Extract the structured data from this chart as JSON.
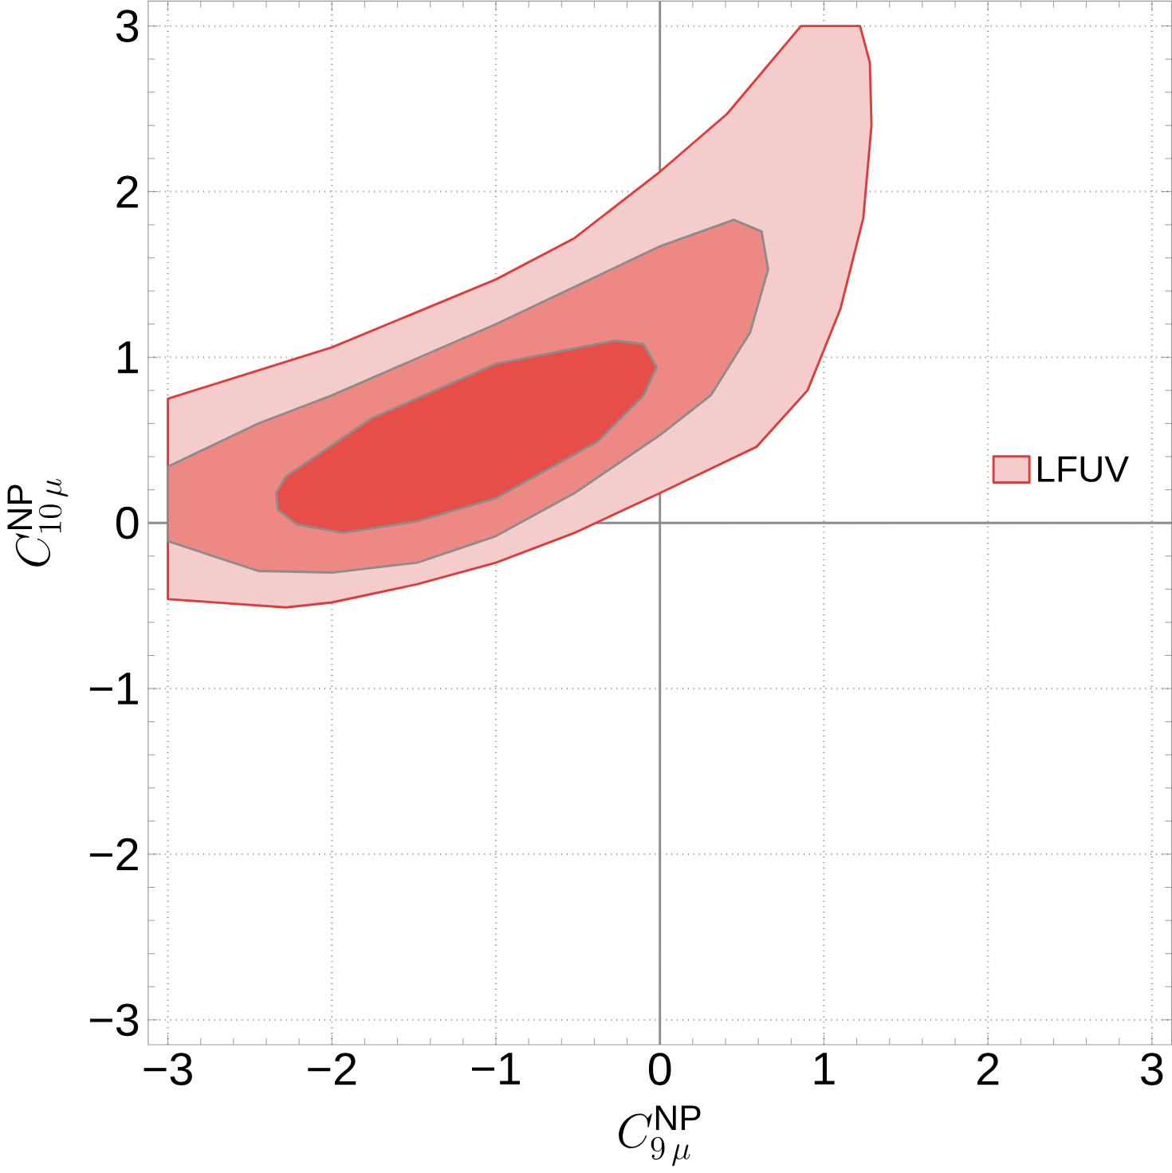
{
  "chart_data": {
    "type": "area",
    "xlabel": "C^{\\mathrm{NP}}_{9\\,\\mu}",
    "ylabel": "C^{\\mathrm{NP}}_{10\\,\\mu}",
    "xlim": [
      -3.12,
      3.12
    ],
    "ylim": [
      -3.15,
      3.15
    ],
    "xticks": [
      {
        "value": -3,
        "label": "−3"
      },
      {
        "value": -2,
        "label": "−2"
      },
      {
        "value": -1,
        "label": "−1"
      },
      0,
      1,
      2,
      3
    ],
    "yticks": [
      {
        "value": -3,
        "label": "−3"
      },
      {
        "value": -2,
        "label": "−2"
      },
      {
        "value": -1,
        "label": "−1"
      },
      0,
      1,
      2,
      3
    ],
    "grid": true,
    "legend": "right",
    "line_style": "solid",
    "series": [
      {
        "name": "LFUV",
        "color": "#f5cccc",
        "x": [
          -3,
          -2,
          -1,
          -0.52,
          0,
          0.41,
          0.86,
          1.22,
          1.28,
          1.29,
          1.24,
          1.1,
          0.9,
          0.59,
          0,
          -0.52,
          -1,
          -1.48,
          -2,
          -2.28,
          -3
        ],
        "values": [
          0.75,
          1.06,
          1.47,
          1.72,
          2.12,
          2.47,
          3.0,
          3.0,
          2.78,
          2.4,
          1.84,
          1.29,
          0.8,
          0.46,
          0.18,
          -0.06,
          -0.24,
          -0.37,
          -0.48,
          -0.51,
          -0.46
        ]
      },
      {
        "color": "#ee8883",
        "x": [
          -3,
          -2.45,
          -2,
          -1,
          0,
          0.45,
          0.62,
          0.66,
          0.55,
          0.31,
          0,
          -0.52,
          -1,
          -1.48,
          -2,
          -2.45,
          -3
        ],
        "values": [
          0.34,
          0.6,
          0.77,
          1.2,
          1.67,
          1.83,
          1.76,
          1.53,
          1.15,
          0.77,
          0.53,
          0.18,
          -0.08,
          -0.24,
          -0.3,
          -0.29,
          -0.11
        ]
      },
      {
        "color": "#e84e48",
        "x": [
          -2.34,
          -2.28,
          -1.76,
          -1,
          -0.28,
          -0.1,
          -0.02,
          -0.1,
          -0.38,
          -1,
          -1.48,
          -1.93,
          -2.21,
          -2.33
        ],
        "values": [
          0.18,
          0.28,
          0.63,
          0.96,
          1.1,
          1.08,
          0.94,
          0.77,
          0.49,
          0.15,
          0.01,
          -0.06,
          -0.01,
          0.08
        ]
      }
    ]
  }
}
